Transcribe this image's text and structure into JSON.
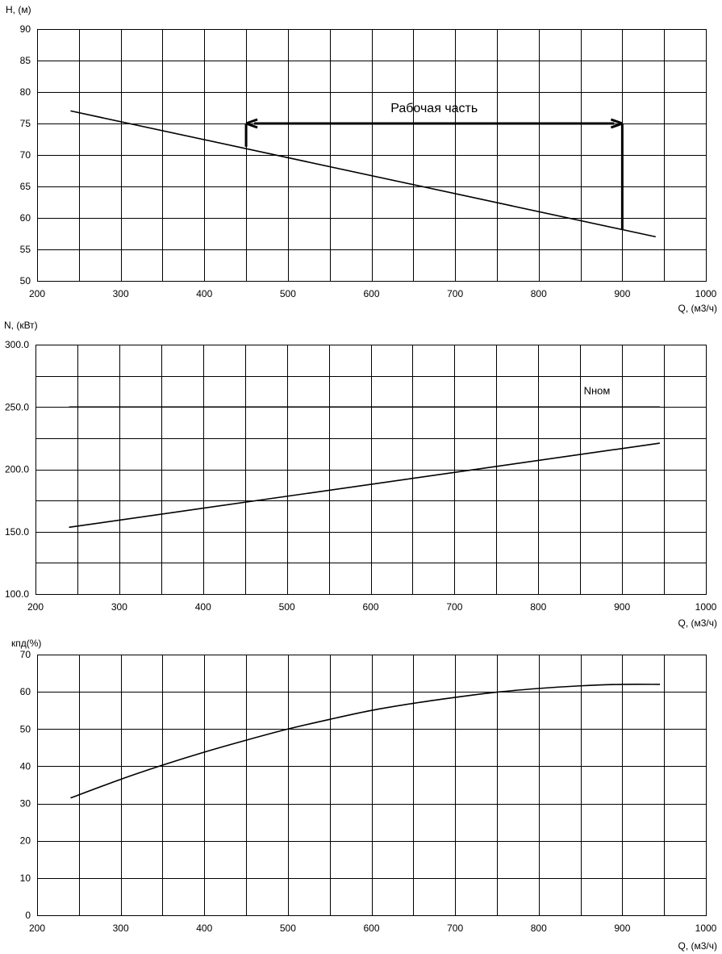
{
  "chart_data": [
    {
      "type": "line",
      "ylabel": "H, (м)",
      "xlabel": "Q, (м3/ч)",
      "xlim": [
        200,
        1000
      ],
      "ylim": [
        50,
        90
      ],
      "xticks": [
        "200",
        "300",
        "400",
        "500",
        "600",
        "700",
        "800",
        "900",
        "1000"
      ],
      "yticks": [
        "50",
        "55",
        "60",
        "65",
        "70",
        "75",
        "80",
        "85",
        "90"
      ],
      "grid": true,
      "series": [
        {
          "x": [
            240,
            940
          ],
          "y": [
            77.0,
            57.0
          ]
        }
      ],
      "annotation": {
        "text": "Рабочая часть",
        "range_x": [
          450,
          900
        ],
        "arrow_y": 75,
        "left_drop_y": 71.3,
        "right_drop_y": 58.2
      }
    },
    {
      "type": "line",
      "ylabel": "N, (кВт)",
      "xlabel": "Q, (м3/ч)",
      "xlim": [
        200,
        1000
      ],
      "ylim": [
        100,
        300
      ],
      "xticks": [
        "200",
        "300",
        "400",
        "500",
        "600",
        "700",
        "800",
        "900",
        "1000"
      ],
      "yticks": [
        "100.0",
        "",
        "150.0",
        "",
        "200.0",
        "",
        "250.0",
        "",
        "300.0"
      ],
      "grid": true,
      "series": [
        {
          "x": [
            240,
            945
          ],
          "y": [
            250,
            250
          ],
          "label": "Nном"
        },
        {
          "x": [
            240,
            945
          ],
          "y": [
            153.5,
            221
          ]
        }
      ]
    },
    {
      "type": "line",
      "ylabel": "кпд(%)",
      "xlabel": "Q, (м3/ч)",
      "xlim": [
        200,
        1000
      ],
      "ylim": [
        0,
        70
      ],
      "xticks": [
        "200",
        "300",
        "400",
        "500",
        "600",
        "700",
        "800",
        "900",
        "1000"
      ],
      "yticks": [
        "0",
        "10",
        "20",
        "30",
        "40",
        "50",
        "60",
        "70"
      ],
      "grid": true,
      "series": [
        {
          "x": [
            240,
            300,
            350,
            400,
            450,
            500,
            550,
            600,
            650,
            700,
            750,
            800,
            850,
            900,
            945
          ],
          "y": [
            31.5,
            36.5,
            40.3,
            43.8,
            47.0,
            50.0,
            52.6,
            55.0,
            56.9,
            58.5,
            59.9,
            60.9,
            61.6,
            62.0,
            62.0
          ]
        }
      ]
    }
  ]
}
